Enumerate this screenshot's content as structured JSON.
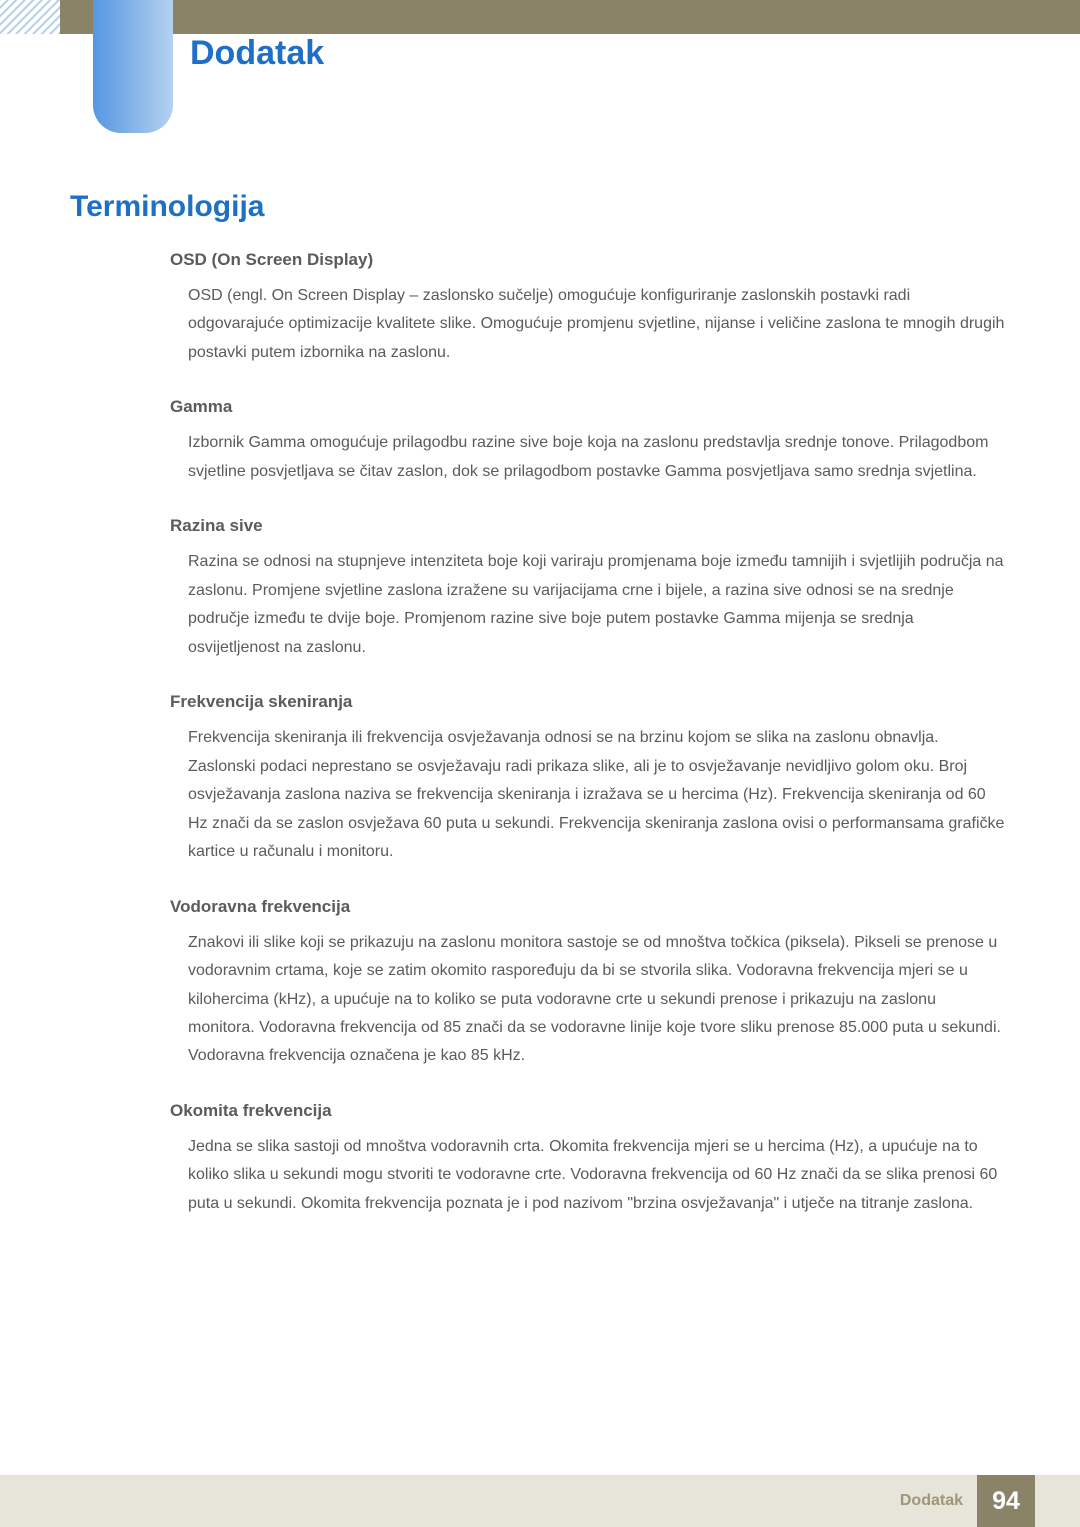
{
  "colors": {
    "header_band": "#8a8368",
    "blue_tab_left": "#5597e2",
    "blue_tab_right": "#b5d1f0",
    "heading": "#1d6fc7",
    "body_text": "#5b5b5b",
    "footer_bg": "#e7e4da",
    "footer_label": "#9d9777",
    "page_box": "#8a8368",
    "hatch_a": "#b9d0eb",
    "hatch_b": "#ffffff"
  },
  "typography": {
    "chapter_fontsize": 34,
    "page_title_fontsize": 30,
    "term_title_fontsize": 17,
    "body_fontsize": 16,
    "footer_label_fontsize": 16,
    "page_num_fontsize": 25,
    "line_height": 1.78
  },
  "chapter_title": "Dodatak",
  "page_title": "Terminologija",
  "terms": [
    {
      "title": "OSD (On Screen Display)",
      "body": "OSD (engl. On Screen Display – zaslonsko sučelje) omogućuje konfiguriranje zaslonskih postavki radi odgovarajuće optimizacije kvalitete slike. Omogućuje promjenu svjetline, nijanse i veličine zaslona te mnogih drugih postavki putem izbornika na zaslonu."
    },
    {
      "title": "Gamma",
      "body": "Izbornik Gamma omogućuje prilagodbu razine sive boje koja na zaslonu predstavlja srednje tonove. Prilagodbom svjetline posvjetljava se čitav zaslon, dok se prilagodbom postavke Gamma posvjetljava samo srednja svjetlina."
    },
    {
      "title": "Razina sive",
      "body": "Razina se odnosi na stupnjeve intenziteta boje koji variraju promjenama boje između tamnijih i svjetlijih područja na zaslonu. Promjene svjetline zaslona izražene su varijacijama crne i bijele, a razina sive odnosi se na srednje područje između te dvije boje. Promjenom razine sive boje putem postavke Gamma mijenja se srednja osvijetljenost na zaslonu."
    },
    {
      "title": "Frekvencija skeniranja",
      "body": "Frekvencija skeniranja ili frekvencija osvježavanja odnosi se na brzinu kojom se slika na zaslonu obnavlja. Zaslonski podaci neprestano se osvježavaju radi prikaza slike, ali je to osvježavanje nevidljivo golom oku. Broj osvježavanja zaslona naziva se frekvencija skeniranja i izražava se u hercima (Hz). Frekvencija skeniranja od 60 Hz znači da se zaslon osvježava 60 puta u sekundi. Frekvencija skeniranja zaslona ovisi o performansama grafičke kartice u računalu i monitoru."
    },
    {
      "title": "Vodoravna frekvencija",
      "body": "Znakovi ili slike koji se prikazuju na zaslonu monitora sastoje se od mnoštva točkica (piksela). Pikseli se prenose u vodoravnim crtama, koje se zatim okomito raspoređuju da bi se stvorila slika. Vodoravna frekvencija mjeri se u kilohercima (kHz), a upućuje na to koliko se puta vodoravne crte u sekundi prenose i prikazuju na zaslonu monitora. Vodoravna frekvencija od 85 znači da se vodoravne linije koje tvore sliku prenose 85.000 puta u sekundi. Vodoravna frekvencija označena je kao 85 kHz."
    },
    {
      "title": "Okomita frekvencija",
      "body": "Jedna se slika sastoji od mnoštva vodoravnih crta. Okomita frekvencija mjeri se u hercima (Hz), a upućuje na to koliko slika u sekundi mogu stvoriti te vodoravne crte. Vodoravna frekvencija od 60 Hz znači da se slika prenosi 60 puta u sekundi. Okomita frekvencija poznata je i pod nazivom \"brzina osvježavanja\" i utječe na titranje zaslona."
    }
  ],
  "footer": {
    "label": "Dodatak",
    "page_number": "94"
  }
}
